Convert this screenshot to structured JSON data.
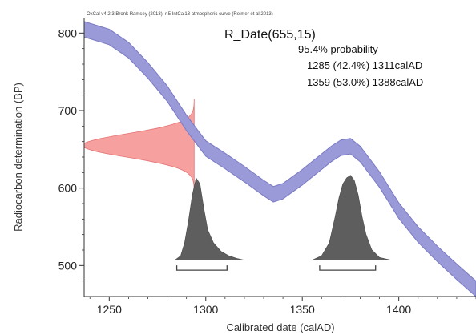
{
  "chart_data": {
    "type": "area",
    "caption": "OxCal v4.2.3 Bronk Ramsey (2013); r:5 IntCal13 atmospheric curve (Reimer et al 2013)",
    "title": "R_Date(655,15)",
    "probability_label": "95.4% probability",
    "ranges": [
      "1285 (42.4%) 1311calAD",
      "1359 (53.0%) 1388calAD"
    ],
    "ranges_data": [
      [
        1285,
        1311
      ],
      [
        1359,
        1388
      ]
    ],
    "xlabel": "Calibrated date (calAD)",
    "ylabel": "Radiocarbon determination (BP)",
    "xlim": [
      1237,
      1440
    ],
    "ylim": [
      460,
      820
    ],
    "x_ticks": [
      "1250",
      "1300",
      "1350",
      "1400"
    ],
    "x_tick_values": [
      1250,
      1300,
      1350,
      1400
    ],
    "y_ticks": [
      "500",
      "600",
      "700",
      "800"
    ],
    "y_tick_values": [
      500,
      600,
      700,
      800
    ],
    "measurement": {
      "mean": 655,
      "sd": 15
    },
    "calibration_curve": {
      "x": [
        1237,
        1250,
        1260,
        1270,
        1280,
        1290,
        1300,
        1310,
        1320,
        1330,
        1335,
        1340,
        1350,
        1360,
        1365,
        1370,
        1375,
        1380,
        1390,
        1400,
        1410,
        1420,
        1430,
        1440
      ],
      "y": [
        805,
        795,
        778,
        752,
        722,
        684,
        651,
        635,
        618,
        600,
        592,
        596,
        614,
        634,
        644,
        652,
        654,
        644,
        611,
        571,
        540,
        515,
        492,
        470
      ],
      "band_halfwidth": 10
    },
    "calibrated_distribution": {
      "x": [
        1284,
        1287,
        1289,
        1291,
        1293,
        1295,
        1297,
        1299,
        1301,
        1304,
        1308,
        1312,
        1316,
        1320,
        1340,
        1355,
        1360,
        1364,
        1367,
        1369,
        1371,
        1373,
        1375,
        1377,
        1379,
        1381,
        1383,
        1386,
        1390,
        1396
      ],
      "y": [
        0.0,
        0.05,
        0.2,
        0.45,
        0.75,
        0.95,
        0.88,
        0.6,
        0.35,
        0.2,
        0.1,
        0.05,
        0.02,
        0.0,
        0.0,
        0.0,
        0.05,
        0.2,
        0.5,
        0.72,
        0.88,
        0.95,
        0.98,
        0.92,
        0.75,
        0.5,
        0.3,
        0.12,
        0.03,
        0.0
      ]
    },
    "colors": {
      "curve": "#9a9ad8",
      "curve_edge": "#7a7ac4",
      "measurement": "#f6a0a0",
      "measurement_edge": "#e57373",
      "distribution": "#5e5e5e",
      "axis": "#333333"
    }
  }
}
